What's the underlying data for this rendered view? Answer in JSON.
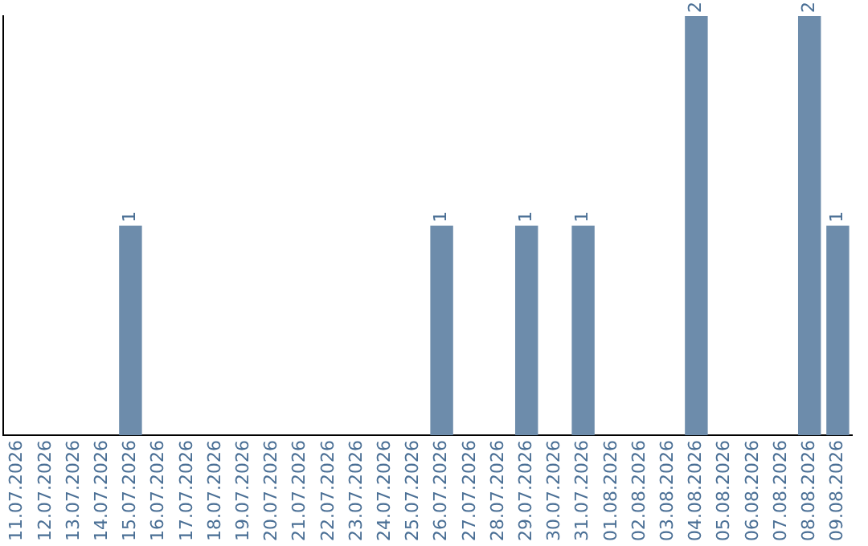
{
  "chart_data": {
    "type": "bar",
    "categories": [
      "11.07.2026",
      "12.07.2026",
      "13.07.2026",
      "14.07.2026",
      "15.07.2026",
      "16.07.2026",
      "17.07.2026",
      "18.07.2026",
      "19.07.2026",
      "20.07.2026",
      "21.07.2026",
      "22.07.2026",
      "23.07.2026",
      "24.07.2026",
      "25.07.2026",
      "26.07.2026",
      "27.07.2026",
      "28.07.2026",
      "29.07.2026",
      "30.07.2026",
      "31.07.2026",
      "01.08.2026",
      "02.08.2026",
      "03.08.2026",
      "04.08.2026",
      "05.08.2026",
      "06.08.2026",
      "07.08.2026",
      "08.08.2026",
      "09.08.2026"
    ],
    "values": [
      0,
      0,
      0,
      0,
      1,
      0,
      0,
      0,
      0,
      0,
      0,
      0,
      0,
      0,
      0,
      1,
      0,
      0,
      1,
      0,
      1,
      0,
      0,
      0,
      2,
      0,
      0,
      0,
      2,
      1
    ],
    "value_labels": [
      null,
      null,
      null,
      null,
      "1",
      null,
      null,
      null,
      null,
      null,
      null,
      null,
      null,
      null,
      null,
      "1",
      null,
      null,
      "1",
      null,
      "1",
      null,
      null,
      null,
      "2",
      null,
      null,
      null,
      "2",
      "1"
    ],
    "color": "#6d8cab",
    "tick_labels": "x",
    "grid": false,
    "legend": false
  }
}
